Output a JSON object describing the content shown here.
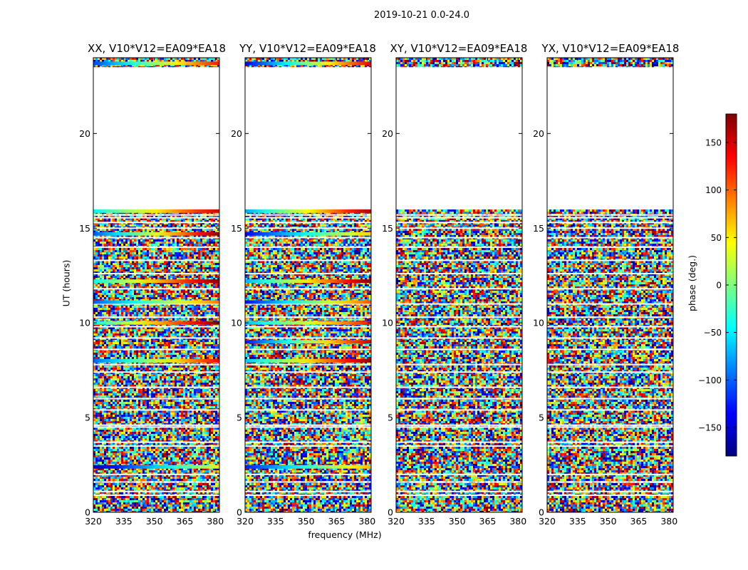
{
  "figure": {
    "title": "2019-10-21 0.0-24.0"
  },
  "chart_data": [
    {
      "type": "heatmap",
      "title": "XX, V10*V12=EA09*EA18",
      "xlabel": "",
      "ylabel": "UT (hours)",
      "xlim": [
        320,
        382
      ],
      "ylim": [
        0,
        24
      ],
      "xticks": [
        320,
        335,
        350,
        365,
        380
      ],
      "yticks": [
        0,
        5,
        10,
        15,
        20
      ],
      "value": "phase (deg.)",
      "data_gap_hours": [
        16.0,
        23.5
      ],
      "coherent_rows_hours": [
        2.4,
        8.0,
        10.0,
        11.1,
        12.2,
        14.7,
        15.9,
        23.7
      ]
    },
    {
      "type": "heatmap",
      "title": "YY, V10*V12=EA09*EA18",
      "xlabel": "frequency (MHz)",
      "ylabel": "",
      "xlim": [
        320,
        382
      ],
      "ylim": [
        0,
        24
      ],
      "xticks": [
        320,
        335,
        350,
        365,
        380
      ],
      "yticks": [
        0,
        5,
        10,
        15,
        20
      ],
      "value": "phase (deg.)",
      "data_gap_hours": [
        16.0,
        23.5
      ],
      "coherent_rows_hours": [
        2.4,
        8.0,
        9.0,
        10.0,
        11.1,
        12.2,
        14.7,
        15.9,
        23.7
      ]
    },
    {
      "type": "heatmap",
      "title": "XY, V10*V12=EA09*EA18",
      "xlabel": "",
      "ylabel": "",
      "xlim": [
        320,
        382
      ],
      "ylim": [
        0,
        24
      ],
      "xticks": [
        320,
        335,
        350,
        365,
        380
      ],
      "yticks": [
        0,
        5,
        10,
        15,
        20
      ],
      "value": "phase (deg.)",
      "data_gap_hours": [
        16.0,
        23.5
      ],
      "coherent_rows_hours": []
    },
    {
      "type": "heatmap",
      "title": "YX, V10*V12=EA09*EA18",
      "xlabel": "",
      "ylabel": "",
      "xlim": [
        320,
        382
      ],
      "ylim": [
        0,
        24
      ],
      "xticks": [
        320,
        335,
        350,
        365,
        380
      ],
      "yticks": [
        0,
        5,
        10,
        15,
        20
      ],
      "value": "phase (deg.)",
      "data_gap_hours": [
        16.0,
        23.5
      ],
      "coherent_rows_hours": []
    }
  ],
  "colorbar": {
    "label": "phase (deg.)",
    "range": [
      -180,
      180
    ],
    "ticks": [
      -150,
      -100,
      -50,
      0,
      50,
      100,
      150
    ],
    "tick_labels": [
      "−150",
      "−100",
      "−50",
      "0",
      "50",
      "100",
      "150"
    ],
    "colormap": [
      "#00007f",
      "#0000ff",
      "#007fff",
      "#00ffff",
      "#7fff7f",
      "#ffff00",
      "#ff7f00",
      "#ff0000",
      "#7f0000"
    ]
  }
}
